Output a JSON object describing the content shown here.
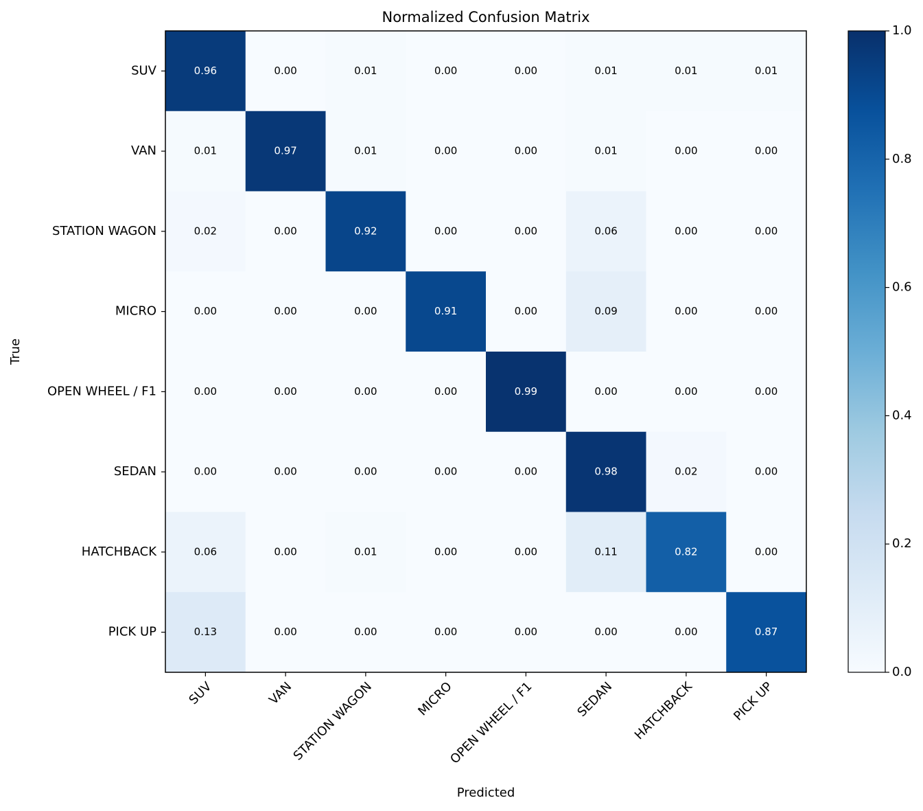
{
  "chart_data": {
    "type": "heatmap",
    "title": "Normalized Confusion Matrix",
    "x_label": "Predicted",
    "y_label": "True",
    "x_categories": [
      "SUV",
      "VAN",
      "STATION WAGON",
      "MICRO",
      "OPEN WHEEL / F1",
      "SEDAN",
      "HATCHBACK",
      "PICK UP"
    ],
    "y_categories": [
      "SUV",
      "VAN",
      "STATION WAGON",
      "MICRO",
      "OPEN WHEEL / F1",
      "SEDAN",
      "HATCHBACK",
      "PICK UP"
    ],
    "values": [
      [
        0.96,
        0,
        0.01,
        0,
        0,
        0.01,
        0.01,
        0.01
      ],
      [
        0.01,
        0.97,
        0.01,
        0,
        0,
        0.01,
        0,
        0
      ],
      [
        0.02,
        0,
        0.92,
        0,
        0,
        0.06,
        0,
        0
      ],
      [
        0,
        0,
        0,
        0.91,
        0,
        0.09,
        0,
        0
      ],
      [
        0,
        0,
        0,
        0,
        0.99,
        0,
        0,
        0
      ],
      [
        0,
        0,
        0,
        0,
        0,
        0.98,
        0.02,
        0
      ],
      [
        0.06,
        0,
        0.01,
        0,
        0,
        0.11,
        0.82,
        0
      ],
      [
        0.13,
        0,
        0,
        0,
        0,
        0,
        0,
        0.87
      ]
    ],
    "value_labels": [
      [
        "0.96",
        "0.00",
        "0.01",
        "0.00",
        "0.00",
        "0.01",
        "0.01",
        "0.01"
      ],
      [
        "0.01",
        "0.97",
        "0.01",
        "0.00",
        "0.00",
        "0.01",
        "0.00",
        "0.00"
      ],
      [
        "0.02",
        "0.00",
        "0.92",
        "0.00",
        "0.00",
        "0.06",
        "0.00",
        "0.00"
      ],
      [
        "0.00",
        "0.00",
        "0.00",
        "0.91",
        "0.00",
        "0.09",
        "0.00",
        "0.00"
      ],
      [
        "0.00",
        "0.00",
        "0.00",
        "0.00",
        "0.99",
        "0.00",
        "0.00",
        "0.00"
      ],
      [
        "0.00",
        "0.00",
        "0.00",
        "0.00",
        "0.00",
        "0.98",
        "0.02",
        "0.00"
      ],
      [
        "0.06",
        "0.00",
        "0.01",
        "0.00",
        "0.00",
        "0.11",
        "0.82",
        "0.00"
      ],
      [
        "0.13",
        "0.00",
        "0.00",
        "0.00",
        "0.00",
        "0.00",
        "0.00",
        "0.87"
      ]
    ],
    "colormap": [
      "#f7fbff",
      "#deebf7",
      "#c6dbef",
      "#9ecae1",
      "#6baed6",
      "#4292c6",
      "#2171b5",
      "#08519c",
      "#08306b"
    ],
    "zlim": [
      0,
      1
    ],
    "zticks": [
      {
        "value": 0,
        "label": "0.0"
      },
      {
        "value": 0.2,
        "label": "0.2"
      },
      {
        "value": 0.4,
        "label": "0.4"
      },
      {
        "value": 0.6,
        "label": "0.6"
      },
      {
        "value": 0.8,
        "label": "0.8"
      },
      {
        "value": 1,
        "label": "1.0"
      }
    ]
  }
}
